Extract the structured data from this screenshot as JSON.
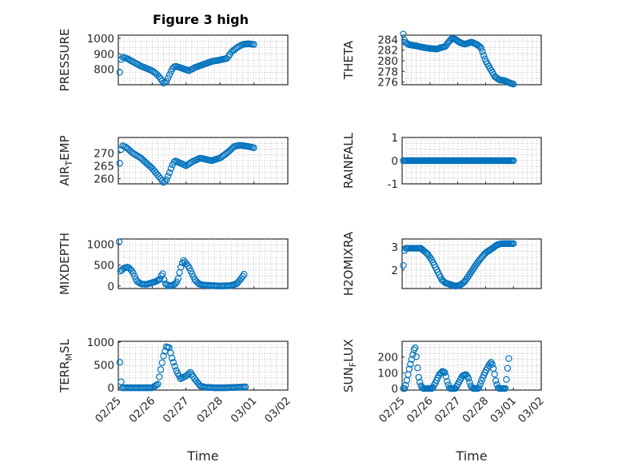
{
  "chart_data": [
    {
      "type": "scatter",
      "title": "Figure 3 high",
      "ylabel": "PRESSURE",
      "ylim": [
        700,
        1020
      ],
      "yticks": [
        800,
        900,
        1000
      ],
      "xlim": [
        0,
        6
      ],
      "xtick_labels": [],
      "grid": true,
      "keyframes": [
        [
          0.05,
          780
        ],
        [
          0.08,
          840
        ],
        [
          0.12,
          880
        ],
        [
          0.3,
          870
        ],
        [
          0.5,
          850
        ],
        [
          0.8,
          820
        ],
        [
          1.0,
          805
        ],
        [
          1.2,
          790
        ],
        [
          1.35,
          770
        ],
        [
          1.5,
          740
        ],
        [
          1.6,
          710
        ],
        [
          1.7,
          720
        ],
        [
          1.8,
          760
        ],
        [
          1.9,
          800
        ],
        [
          2.0,
          820
        ],
        [
          2.2,
          810
        ],
        [
          2.35,
          800
        ],
        [
          2.5,
          790
        ],
        [
          2.7,
          810
        ],
        [
          3.0,
          830
        ],
        [
          3.3,
          850
        ],
        [
          3.6,
          860
        ],
        [
          3.85,
          870
        ],
        [
          4.0,
          910
        ],
        [
          4.2,
          940
        ],
        [
          4.4,
          960
        ],
        [
          4.6,
          965
        ],
        [
          4.8,
          960
        ]
      ]
    },
    {
      "type": "scatter",
      "title": "",
      "ylabel": "THETA",
      "ylim": [
        275.5,
        284.8
      ],
      "yticks": [
        276,
        278,
        280,
        282,
        284
      ],
      "xlim": [
        0,
        6
      ],
      "xtick_labels": [],
      "grid": true,
      "keyframes": [
        [
          0.05,
          285
        ],
        [
          0.12,
          283.5
        ],
        [
          0.3,
          283
        ],
        [
          0.6,
          282.8
        ],
        [
          0.9,
          282.5
        ],
        [
          1.2,
          282.3
        ],
        [
          1.5,
          282.2
        ],
        [
          1.7,
          282.5
        ],
        [
          1.85,
          282.6
        ],
        [
          2.0,
          283.5
        ],
        [
          2.15,
          284.2
        ],
        [
          2.3,
          284
        ],
        [
          2.5,
          283.4
        ],
        [
          2.7,
          283.1
        ],
        [
          3.0,
          283.5
        ],
        [
          3.2,
          283.1
        ],
        [
          3.4,
          282.5
        ],
        [
          3.6,
          280
        ],
        [
          3.8,
          278.5
        ],
        [
          4.0,
          277
        ],
        [
          4.2,
          276.4
        ],
        [
          4.4,
          276.3
        ],
        [
          4.6,
          275.9
        ],
        [
          4.8,
          275.6
        ]
      ]
    },
    {
      "type": "scatter",
      "title": "",
      "ylabel": "AIR_TEMP",
      "ylabel_main": "AIR",
      "ylabel_sub": "T",
      "ylabel_rest": "EMP",
      "ylim": [
        258,
        276
      ],
      "yticks": [
        260,
        265,
        270
      ],
      "xlim": [
        0,
        6
      ],
      "xtick_labels": [],
      "grid": true,
      "keyframes": [
        [
          0.05,
          266
        ],
        [
          0.08,
          269
        ],
        [
          0.12,
          273
        ],
        [
          0.3,
          272
        ],
        [
          0.5,
          270
        ],
        [
          0.8,
          268
        ],
        [
          1.0,
          266
        ],
        [
          1.2,
          264
        ],
        [
          1.35,
          262
        ],
        [
          1.5,
          260
        ],
        [
          1.6,
          258.5
        ],
        [
          1.7,
          259.5
        ],
        [
          1.8,
          262
        ],
        [
          1.9,
          265
        ],
        [
          2.0,
          267
        ],
        [
          2.2,
          266
        ],
        [
          2.4,
          265
        ],
        [
          2.6,
          266.5
        ],
        [
          2.9,
          268
        ],
        [
          3.1,
          267.5
        ],
        [
          3.3,
          267
        ],
        [
          3.6,
          268
        ],
        [
          3.85,
          270
        ],
        [
          4.1,
          272.5
        ],
        [
          4.3,
          273
        ],
        [
          4.6,
          272.5
        ],
        [
          4.8,
          272
        ]
      ]
    },
    {
      "type": "scatter",
      "title": "",
      "ylabel": "RAINFALL",
      "ylim": [
        -1,
        1
      ],
      "yticks": [
        -1,
        0,
        1
      ],
      "xlim": [
        0,
        6
      ],
      "xtick_labels": [],
      "grid": true,
      "keyframes": [
        [
          0.05,
          0
        ],
        [
          4.8,
          0
        ]
      ]
    },
    {
      "type": "scatter",
      "title": "",
      "ylabel": "MIXDEPTH",
      "ylim": [
        -60,
        1120
      ],
      "yticks": [
        0,
        500,
        1000
      ],
      "xlim": [
        0,
        6
      ],
      "xtick_labels": [],
      "grid": true,
      "keyframes": [
        [
          0.03,
          1050
        ],
        [
          0.05,
          850
        ],
        [
          0.08,
          350
        ],
        [
          0.2,
          430
        ],
        [
          0.35,
          450
        ],
        [
          0.5,
          350
        ],
        [
          0.65,
          120
        ],
        [
          0.8,
          50
        ],
        [
          1.0,
          40
        ],
        [
          1.3,
          100
        ],
        [
          1.5,
          170
        ],
        [
          1.55,
          350
        ],
        [
          1.65,
          60
        ],
        [
          1.8,
          0
        ],
        [
          2.0,
          40
        ],
        [
          2.1,
          130
        ],
        [
          2.2,
          420
        ],
        [
          2.3,
          620
        ],
        [
          2.5,
          450
        ],
        [
          2.7,
          160
        ],
        [
          2.85,
          50
        ],
        [
          3.0,
          25
        ],
        [
          3.3,
          10
        ],
        [
          3.6,
          0
        ],
        [
          4.0,
          10
        ],
        [
          4.2,
          60
        ],
        [
          4.35,
          180
        ],
        [
          4.45,
          280
        ]
      ]
    },
    {
      "type": "scatter",
      "title": "",
      "ylabel": "H2OMIXRA",
      "ylim": [
        1.2,
        3.35
      ],
      "yticks": [
        2,
        3
      ],
      "xlim": [
        0,
        6
      ],
      "xtick_labels": [],
      "grid": true,
      "keyframes": [
        [
          0.05,
          2.2
        ],
        [
          0.08,
          2.8
        ],
        [
          0.15,
          2.95
        ],
        [
          0.5,
          2.95
        ],
        [
          0.8,
          2.95
        ],
        [
          1.1,
          2.7
        ],
        [
          1.3,
          2.4
        ],
        [
          1.5,
          2.0
        ],
        [
          1.7,
          1.6
        ],
        [
          1.85,
          1.45
        ],
        [
          2.0,
          1.4
        ],
        [
          2.3,
          1.3
        ],
        [
          2.5,
          1.35
        ],
        [
          2.7,
          1.5
        ],
        [
          3.0,
          1.95
        ],
        [
          3.3,
          2.4
        ],
        [
          3.6,
          2.75
        ],
        [
          3.9,
          2.95
        ],
        [
          4.1,
          3.1
        ],
        [
          4.3,
          3.15
        ],
        [
          4.8,
          3.15
        ]
      ]
    },
    {
      "type": "scatter",
      "title": "",
      "ylabel": "TERR_MSL",
      "ylabel_main": "TERR",
      "ylabel_sub": "M",
      "ylabel_rest": "SL",
      "ylim": [
        -50,
        1020
      ],
      "yticks": [
        0,
        500,
        1000
      ],
      "xlim": [
        0,
        6
      ],
      "xtick_labels": [
        "02/25",
        "02/26",
        "02/27",
        "02/28",
        "03/01",
        "03/02"
      ],
      "xlabel": "Time",
      "grid": true,
      "keyframes": [
        [
          0.05,
          560
        ],
        [
          0.08,
          260
        ],
        [
          0.12,
          0
        ],
        [
          0.6,
          0
        ],
        [
          1.2,
          0
        ],
        [
          1.4,
          80
        ],
        [
          1.5,
          400
        ],
        [
          1.6,
          700
        ],
        [
          1.7,
          900
        ],
        [
          1.8,
          880
        ],
        [
          1.9,
          650
        ],
        [
          2.05,
          380
        ],
        [
          2.2,
          200
        ],
        [
          2.4,
          260
        ],
        [
          2.55,
          340
        ],
        [
          2.7,
          200
        ],
        [
          2.9,
          40
        ],
        [
          3.1,
          10
        ],
        [
          3.4,
          0
        ],
        [
          3.8,
          0
        ],
        [
          4.2,
          10
        ],
        [
          4.5,
          20
        ]
      ]
    },
    {
      "type": "scatter",
      "title": "",
      "ylabel": "SUN_FLUX",
      "ylabel_main": "SUN",
      "ylabel_sub": "F",
      "ylabel_rest": "LUX",
      "ylim": [
        -10,
        300
      ],
      "yticks": [
        0,
        100,
        200
      ],
      "xlim": [
        0,
        6
      ],
      "xtick_labels": [
        "02/25",
        "02/26",
        "02/27",
        "02/28",
        "03/01",
        "03/02"
      ],
      "xlabel": "Time",
      "grid": true,
      "keyframes": [
        [
          0.05,
          0
        ],
        [
          0.12,
          0
        ],
        [
          0.2,
          50
        ],
        [
          0.3,
          120
        ],
        [
          0.4,
          180
        ],
        [
          0.5,
          240
        ],
        [
          0.55,
          270
        ],
        [
          0.6,
          220
        ],
        [
          0.7,
          80
        ],
        [
          0.8,
          20
        ],
        [
          0.9,
          0
        ],
        [
          1.3,
          0
        ],
        [
          1.45,
          40
        ],
        [
          1.6,
          90
        ],
        [
          1.75,
          110
        ],
        [
          1.85,
          100
        ],
        [
          1.95,
          40
        ],
        [
          2.05,
          0
        ],
        [
          2.3,
          0
        ],
        [
          2.45,
          40
        ],
        [
          2.6,
          80
        ],
        [
          2.75,
          90
        ],
        [
          2.85,
          70
        ],
        [
          2.95,
          20
        ],
        [
          3.05,
          0
        ],
        [
          3.3,
          0
        ],
        [
          3.45,
          60
        ],
        [
          3.6,
          110
        ],
        [
          3.75,
          150
        ],
        [
          3.85,
          170
        ],
        [
          3.95,
          120
        ],
        [
          4.05,
          40
        ],
        [
          4.15,
          0
        ],
        [
          4.45,
          0
        ],
        [
          4.5,
          60
        ],
        [
          4.55,
          130
        ],
        [
          4.6,
          190
        ]
      ]
    }
  ]
}
